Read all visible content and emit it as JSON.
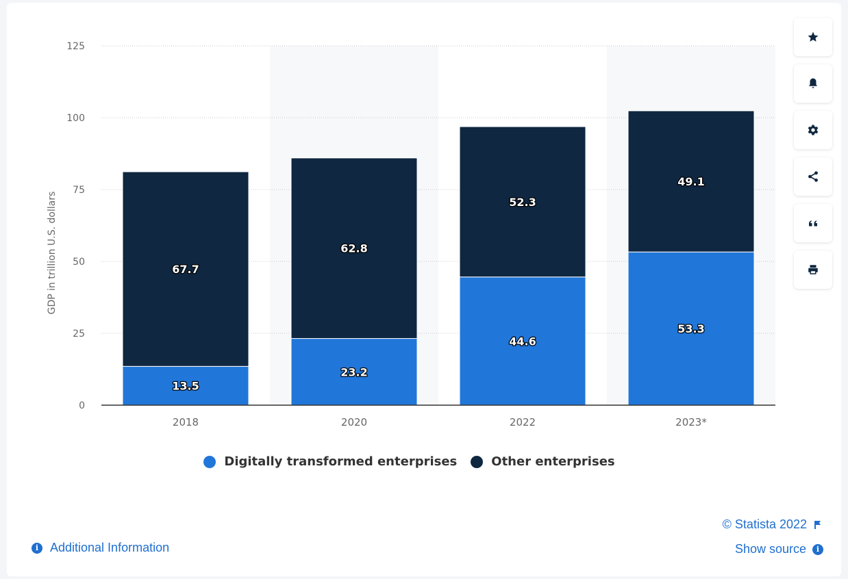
{
  "chart_data": {
    "type": "bar",
    "stacked": true,
    "categories": [
      "2018",
      "2020",
      "2022",
      "2023*"
    ],
    "series": [
      {
        "name": "Digitally transformed enterprises",
        "values": [
          13.5,
          23.2,
          44.6,
          53.3
        ],
        "color": "#2176d9"
      },
      {
        "name": "Other enterprises",
        "values": [
          67.7,
          62.8,
          52.3,
          49.1
        ],
        "color": "#0f2740"
      }
    ],
    "ylabel": "GDP in trillion U.S. dollars",
    "ylim": [
      0,
      125
    ],
    "yticks": [
      "0",
      "25",
      "50",
      "75",
      "100",
      "125"
    ],
    "grid": true,
    "legend_position": "bottom"
  },
  "toolbar": {
    "icons": [
      "star-icon",
      "bell-icon",
      "gear-icon",
      "share-icon",
      "quote-icon",
      "print-icon"
    ]
  },
  "footer": {
    "additional_info": "Additional Information",
    "copyright": "© Statista 2022",
    "show_source": "Show source"
  },
  "colors": {
    "accent": "#1f6fce",
    "band": "#f7f8fa",
    "axis_text": "#666666"
  }
}
